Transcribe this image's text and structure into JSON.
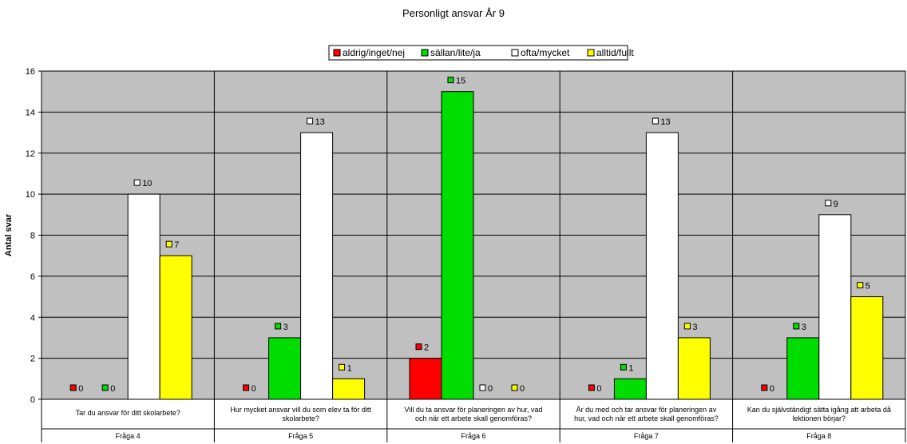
{
  "chart_data": {
    "type": "bar",
    "title": "Personligt ansvar År 9",
    "ylabel": "Antal svar",
    "ylim": [
      0,
      16
    ],
    "yticks": [
      0,
      2,
      4,
      6,
      8,
      10,
      12,
      14,
      16
    ],
    "grid": true,
    "legend_position": "top",
    "categories": [
      {
        "question": [
          "Tar du ansvar för ditt skolarbete?"
        ],
        "name": "Fråga 4"
      },
      {
        "question": [
          "Hur mycket ansvar vill du som elev ta för ditt",
          "skolarbete?"
        ],
        "name": "Fråga 5"
      },
      {
        "question": [
          "Vill du ta ansvar för planeringen av hur, vad",
          "och när ett arbete skall genomföras?"
        ],
        "name": "Fråga 6"
      },
      {
        "question": [
          "Är du med och tar ansvar för planeringen av",
          "hur, vad och när ett arbete skall genomföras?"
        ],
        "name": "Fråga 7"
      },
      {
        "question": [
          "Kan du självständigt sätta igång att arbeta då",
          "lektionen börjar?"
        ],
        "name": "Fråga 8"
      }
    ],
    "series": [
      {
        "name": "aldrig/inget/nej",
        "color": "#ff0000",
        "values": [
          0,
          0,
          2,
          0,
          0
        ]
      },
      {
        "name": "sällan/lite/ja",
        "color": "#00dd00",
        "values": [
          0,
          3,
          15,
          1,
          3
        ]
      },
      {
        "name": "ofta/mycket",
        "color": "#ffffff",
        "values": [
          10,
          13,
          0,
          13,
          9
        ]
      },
      {
        "name": "alltid/fullt",
        "color": "#ffff00",
        "values": [
          7,
          1,
          0,
          3,
          5
        ]
      }
    ],
    "plot_background": "#c0c0c0"
  }
}
